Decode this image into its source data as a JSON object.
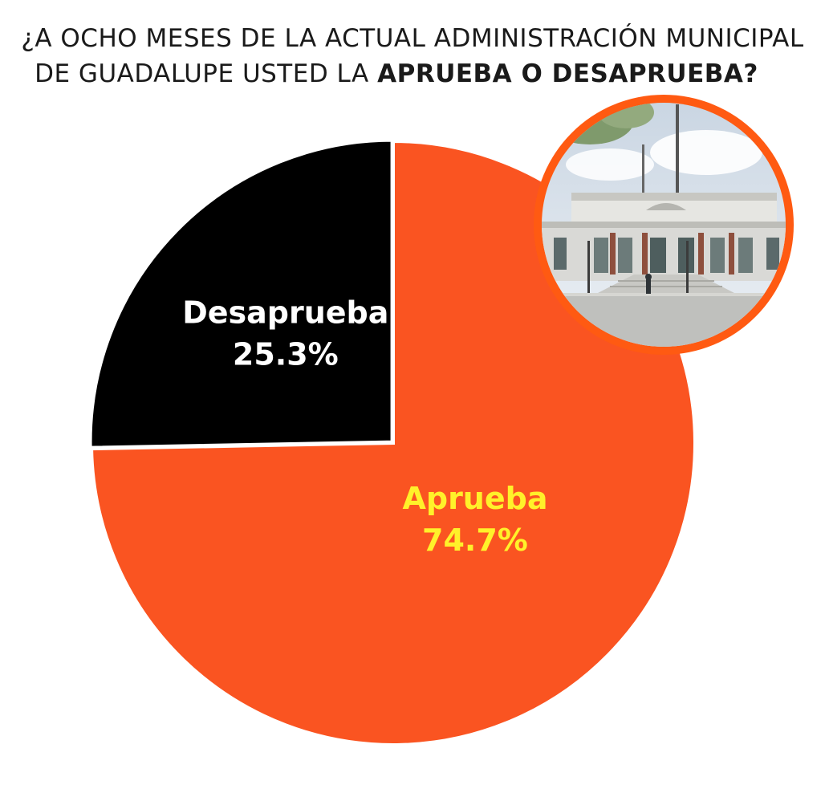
{
  "title": {
    "line1": "¿A OCHO MESES DE LA ACTUAL ADMINISTRACIÓN MUNICIPAL",
    "line2_regular": "DE GUADALUPE USTED LA ",
    "line2_bold": "APRUEBA O DESAPRUEBA?"
  },
  "colors": {
    "aprueba": "#fa5421",
    "desaprueba": "#000000",
    "aprueba_label": "#fff12a",
    "desaprueba_label": "#ffffff",
    "photo_ring": "#ff5a12"
  },
  "photo": {
    "icon": "city-hall-photo"
  },
  "chart_data": {
    "type": "pie",
    "slices": [
      {
        "label": "Aprueba",
        "value_text": "74.7%",
        "value": 74.7
      },
      {
        "label": "Desaprueba",
        "value_text": "25.3%",
        "value": 25.3
      }
    ]
  }
}
